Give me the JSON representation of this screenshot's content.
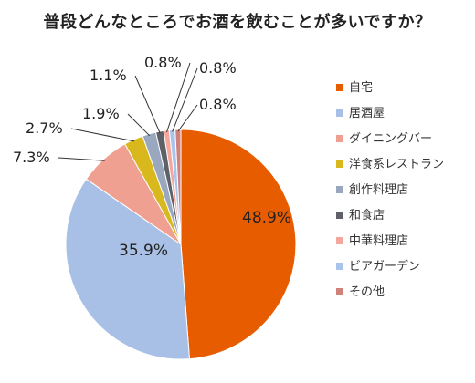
{
  "chart_data": {
    "type": "pie",
    "title": "普段どんなところでお酒を飲むことが多いですか？",
    "categories": [
      "自宅",
      "居酒屋",
      "ダイニングバー",
      "洋食系レストラン",
      "創作料理店",
      "和食店",
      "中華料理店",
      "ビアガーデン",
      "その他"
    ],
    "values": [
      48.9,
      35.9,
      7.3,
      2.7,
      1.9,
      1.1,
      0.8,
      0.8,
      0.8
    ],
    "value_labels": [
      "48.9%",
      "35.9%",
      "7.3%",
      "2.7%",
      "1.9%",
      "1.1%",
      "0.8%",
      "0.8%",
      "0.8%"
    ],
    "colors": [
      "#E85C00",
      "#A9C0E6",
      "#F0A090",
      "#D9B81E",
      "#9AA8BF",
      "#5E6168",
      "#F4A79A",
      "#A8C3EC",
      "#D0827A"
    ],
    "legend_position": "right",
    "start_angle": "12 o'clock",
    "direction": "clockwise"
  }
}
